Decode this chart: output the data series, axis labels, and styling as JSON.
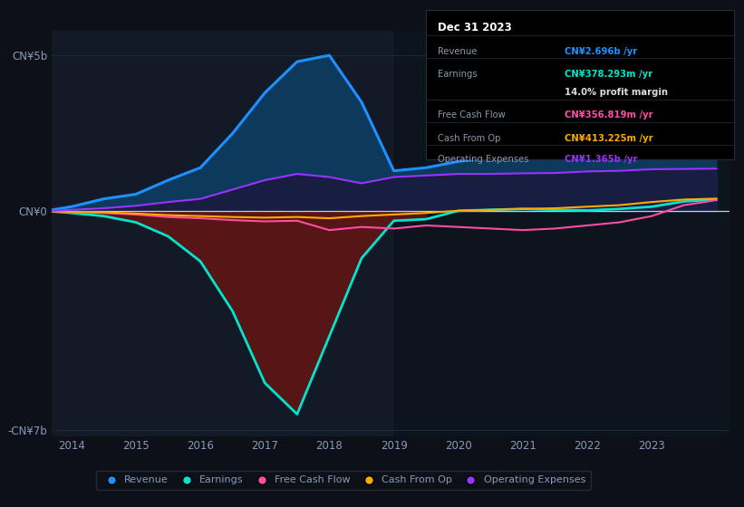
{
  "bg_color": "#0d1117",
  "plot_bg_color": "#111a26",
  "years": [
    2013.7,
    2014,
    2014.5,
    2015,
    2015.5,
    2016,
    2016.5,
    2017,
    2017.5,
    2018,
    2018.5,
    2019,
    2019.5,
    2020,
    2020.5,
    2021,
    2021.5,
    2022,
    2022.5,
    2023,
    2023.5,
    2024.0
  ],
  "revenue": [
    0.05,
    0.15,
    0.4,
    0.55,
    1.0,
    1.4,
    2.5,
    3.8,
    4.8,
    5.0,
    3.5,
    1.3,
    1.4,
    1.6,
    1.75,
    1.9,
    2.0,
    2.2,
    2.4,
    2.55,
    2.65,
    2.7
  ],
  "earnings": [
    0.0,
    -0.05,
    -0.15,
    -0.35,
    -0.8,
    -1.6,
    -3.2,
    -5.5,
    -6.5,
    -4.0,
    -1.5,
    -0.3,
    -0.25,
    0.02,
    0.05,
    0.08,
    0.05,
    0.03,
    0.08,
    0.15,
    0.32,
    0.38
  ],
  "free_cash_flow": [
    0.0,
    -0.02,
    -0.05,
    -0.1,
    -0.18,
    -0.22,
    -0.28,
    -0.32,
    -0.3,
    -0.6,
    -0.5,
    -0.55,
    -0.45,
    -0.5,
    -0.55,
    -0.6,
    -0.55,
    -0.45,
    -0.35,
    -0.15,
    0.2,
    0.36
  ],
  "cash_from_op": [
    0.0,
    -0.01,
    -0.03,
    -0.07,
    -0.12,
    -0.15,
    -0.18,
    -0.2,
    -0.18,
    -0.22,
    -0.15,
    -0.1,
    -0.05,
    0.02,
    0.05,
    0.08,
    0.1,
    0.15,
    0.2,
    0.3,
    0.38,
    0.41
  ],
  "op_expenses": [
    0.02,
    0.05,
    0.1,
    0.18,
    0.3,
    0.4,
    0.7,
    1.0,
    1.2,
    1.1,
    0.9,
    1.1,
    1.15,
    1.2,
    1.2,
    1.22,
    1.23,
    1.28,
    1.3,
    1.35,
    1.36,
    1.37
  ],
  "revenue_color": "#1e90ff",
  "earnings_color": "#00e5cc",
  "free_cash_flow_color": "#ff4da6",
  "cash_from_op_color": "#ffaa00",
  "op_expenses_color": "#9933ff",
  "fill_revenue_color": "#0d3a5c",
  "fill_earnings_neg_color": "#5c1515",
  "fill_op_expenses_color": "#1a1a40",
  "zero_line_color": "#cccccc",
  "text_color": "#7788aa",
  "label_color": "#8899bb",
  "ylim": [
    -7.2,
    5.8
  ],
  "xlim": [
    2013.7,
    2024.2
  ],
  "yticks": [
    -7,
    0,
    5
  ],
  "ytick_labels": [
    "-CN¥7b",
    "CN¥0",
    "CN¥5b"
  ],
  "xtick_positions": [
    2014,
    2015,
    2016,
    2017,
    2018,
    2019,
    2020,
    2021,
    2022,
    2023
  ],
  "xtick_labels": [
    "2014",
    "2015",
    "2016",
    "2017",
    "2018",
    "2019",
    "2020",
    "2021",
    "2022",
    "2023"
  ],
  "legend_items": [
    "Revenue",
    "Earnings",
    "Free Cash Flow",
    "Cash From Op",
    "Operating Expenses"
  ],
  "legend_colors": [
    "#1e90ff",
    "#00e5cc",
    "#ff4da6",
    "#ffaa00",
    "#9933ff"
  ],
  "tooltip_title": "Dec 31 2023",
  "tooltip_rows": [
    [
      "Revenue",
      "CN¥2.696b /yr",
      "#1e90ff"
    ],
    [
      "Earnings",
      "CN¥378.293m /yr",
      "#00e5cc"
    ],
    [
      "",
      "14.0% profit margin",
      "#dddddd"
    ],
    [
      "Free Cash Flow",
      "CN¥356.819m /yr",
      "#ff4da6"
    ],
    [
      "Cash From Op",
      "CN¥413.225m /yr",
      "#ffaa00"
    ],
    [
      "Operating Expenses",
      "CN¥1.365b /yr",
      "#9933ff"
    ]
  ]
}
